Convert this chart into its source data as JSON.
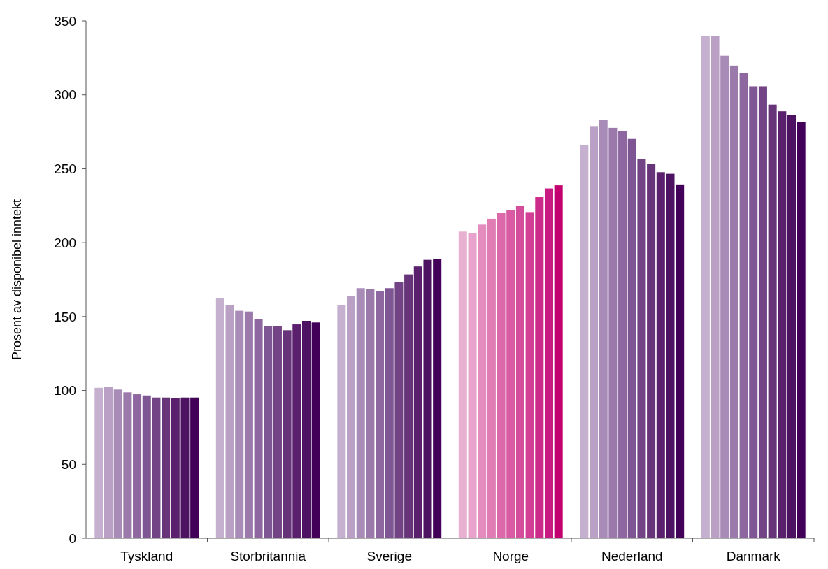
{
  "chart_data": {
    "type": "bar",
    "ylabel": "Prosent av disponibel inntekt",
    "categories": [
      "Tyskland",
      "Storbritannia",
      "Sverige",
      "Norge",
      "Nederland",
      "Danmark"
    ],
    "ylim": [
      0,
      350
    ],
    "yticks": [
      0,
      50,
      100,
      150,
      200,
      250,
      300,
      350
    ],
    "grid": false,
    "series": [
      {
        "colors": [
          "#c6b0cf",
          "#c6b0cf",
          "#c6b0cf",
          "#e9b1d1",
          "#c6b0cf",
          "#c6b0cf"
        ],
        "values": [
          101.8,
          162.6,
          157.8,
          207.5,
          266.3,
          339.8
        ]
      },
      {
        "colors": [
          "#b9a0c4",
          "#b9a0c4",
          "#b9a0c4",
          "#e8a2cb",
          "#b9a0c4",
          "#b9a0c4"
        ],
        "values": [
          102.6,
          157.5,
          164.1,
          206.2,
          278.9,
          339.8
        ]
      },
      {
        "colors": [
          "#a98bb8",
          "#a98bb8",
          "#a98bb8",
          "#e48cbe",
          "#a98bb8",
          "#a98bb8"
        ],
        "values": [
          100.6,
          153.9,
          169.2,
          212.2,
          283.3,
          326.5
        ]
      },
      {
        "colors": [
          "#9b79ab",
          "#9b79ab",
          "#9b79ab",
          "#e07db5",
          "#9b79ab",
          "#9b79ab"
        ],
        "values": [
          98.7,
          153.4,
          168.4,
          216.2,
          277.7,
          319.8
        ]
      },
      {
        "colors": [
          "#8e67a0",
          "#8e67a0",
          "#8e67a0",
          "#dc6aab",
          "#8e67a0",
          "#8e67a0"
        ],
        "values": [
          97.4,
          148.1,
          167.3,
          220.1,
          275.6,
          314.6
        ]
      },
      {
        "colors": [
          "#7f5694",
          "#7f5694",
          "#7f5694",
          "#d85ba4",
          "#7f5694",
          "#7f5694"
        ],
        "values": [
          96.6,
          143.3,
          169.2,
          222.0,
          270.2,
          305.8
        ]
      },
      {
        "colors": [
          "#734485",
          "#734485",
          "#734485",
          "#d44d9c",
          "#734485",
          "#734485"
        ],
        "values": [
          95.2,
          143.3,
          173.1,
          224.8,
          256.4,
          305.8
        ]
      },
      {
        "colors": [
          "#673479",
          "#673479",
          "#673479",
          "#d23f95",
          "#673479",
          "#673479"
        ],
        "values": [
          95.2,
          140.8,
          178.5,
          220.7,
          253.1,
          293.4
        ]
      },
      {
        "colors": [
          "#5b206d",
          "#5b206d",
          "#5b206d",
          "#cd2b89",
          "#5b206d",
          "#5b206d"
        ],
        "values": [
          94.6,
          144.7,
          183.9,
          230.8,
          247.7,
          288.9
        ]
      },
      {
        "colors": [
          "#4e1262",
          "#4e1262",
          "#4e1262",
          "#c81a80",
          "#4e1262",
          "#4e1262"
        ],
        "values": [
          95.2,
          147.1,
          188.4,
          236.7,
          246.6,
          286.3
        ]
      },
      {
        "colors": [
          "#430058",
          "#430058",
          "#430058",
          "#c40070",
          "#430058",
          "#430058"
        ],
        "values": [
          95.2,
          146.0,
          189.2,
          238.8,
          239.4,
          281.6
        ]
      }
    ]
  }
}
